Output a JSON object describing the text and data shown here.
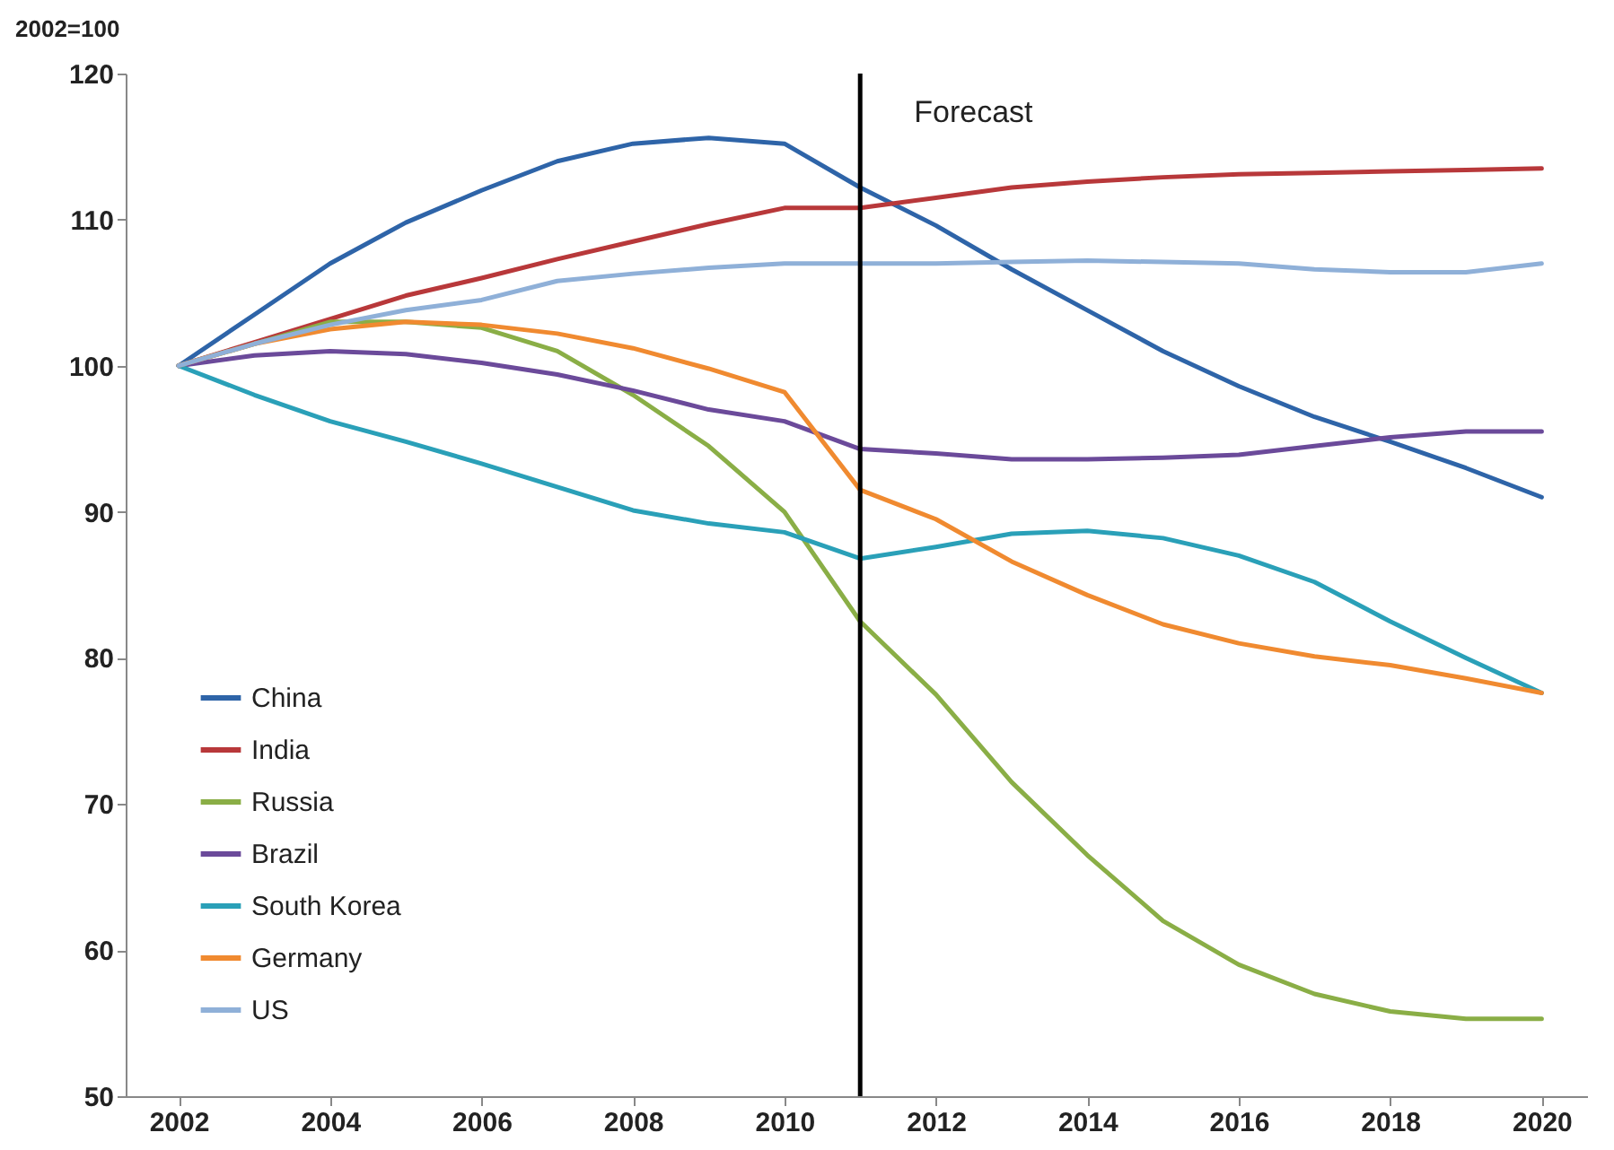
{
  "chart_data": {
    "type": "line",
    "ylabel": "2002=100",
    "x": [
      2002,
      2003,
      2004,
      2005,
      2006,
      2007,
      2008,
      2009,
      2010,
      2011,
      2012,
      2013,
      2014,
      2015,
      2016,
      2017,
      2018,
      2019,
      2020
    ],
    "series": [
      {
        "name": "China",
        "color": "#2e64a8",
        "values": [
          100,
          103.5,
          107,
          109.8,
          112,
          114,
          115.2,
          115.6,
          115.2,
          112.2,
          109.6,
          106.6,
          103.8,
          101,
          98.6,
          96.5,
          94.8,
          93,
          91
        ]
      },
      {
        "name": "India",
        "color": "#b8383a",
        "values": [
          100,
          101.6,
          103.2,
          104.8,
          106,
          107.3,
          108.5,
          109.7,
          110.8,
          110.8,
          111.5,
          112.2,
          112.6,
          112.9,
          113.1,
          113.2,
          113.3,
          113.4,
          113.5
        ]
      },
      {
        "name": "Russia",
        "color": "#8aae46",
        "values": [
          100,
          101.5,
          103,
          103,
          102.6,
          101,
          98,
          94.5,
          90,
          82.5,
          77.5,
          71.5,
          66.5,
          62,
          59,
          57,
          55.8,
          55.3,
          55.3
        ]
      },
      {
        "name": "Brazil",
        "color": "#6b4a9a",
        "values": [
          100,
          100.7,
          101,
          100.8,
          100.2,
          99.4,
          98.3,
          97,
          96.2,
          94.3,
          94,
          93.6,
          93.6,
          93.7,
          93.9,
          94.5,
          95.1,
          95.5,
          95.5
        ]
      },
      {
        "name": "South Korea",
        "color": "#2aa0b8",
        "values": [
          100,
          98,
          96.2,
          94.8,
          93.3,
          91.7,
          90.1,
          89.2,
          88.6,
          86.8,
          87.6,
          88.5,
          88.7,
          88.2,
          87,
          85.2,
          82.5,
          80,
          77.6
        ]
      },
      {
        "name": "Germany",
        "color": "#f08a30",
        "values": [
          100,
          101.5,
          102.5,
          103,
          102.8,
          102.2,
          101.2,
          99.8,
          98.2,
          91.5,
          89.5,
          86.6,
          84.3,
          82.3,
          81,
          80.1,
          79.5,
          78.6,
          77.6
        ]
      },
      {
        "name": "US",
        "color": "#8fb0d8",
        "values": [
          100,
          101.5,
          102.8,
          103.8,
          104.5,
          105.8,
          106.3,
          106.7,
          107,
          107,
          107,
          107.1,
          107.2,
          107.1,
          107,
          106.6,
          106.4,
          106.4,
          107
        ]
      }
    ],
    "xlim": [
      2001.3,
      2020.6
    ],
    "ylim": [
      50,
      120
    ],
    "xticks": [
      2002,
      2004,
      2006,
      2008,
      2010,
      2012,
      2014,
      2016,
      2018,
      2020
    ],
    "yticks": [
      50,
      60,
      70,
      80,
      90,
      100,
      110,
      120
    ],
    "ref_lines": [
      {
        "axis": "x",
        "value": 2011,
        "label": "Forecast",
        "color": "#000000"
      }
    ],
    "legend": "bottom left",
    "grid": false,
    "marker": "none",
    "line_style": "solid"
  }
}
